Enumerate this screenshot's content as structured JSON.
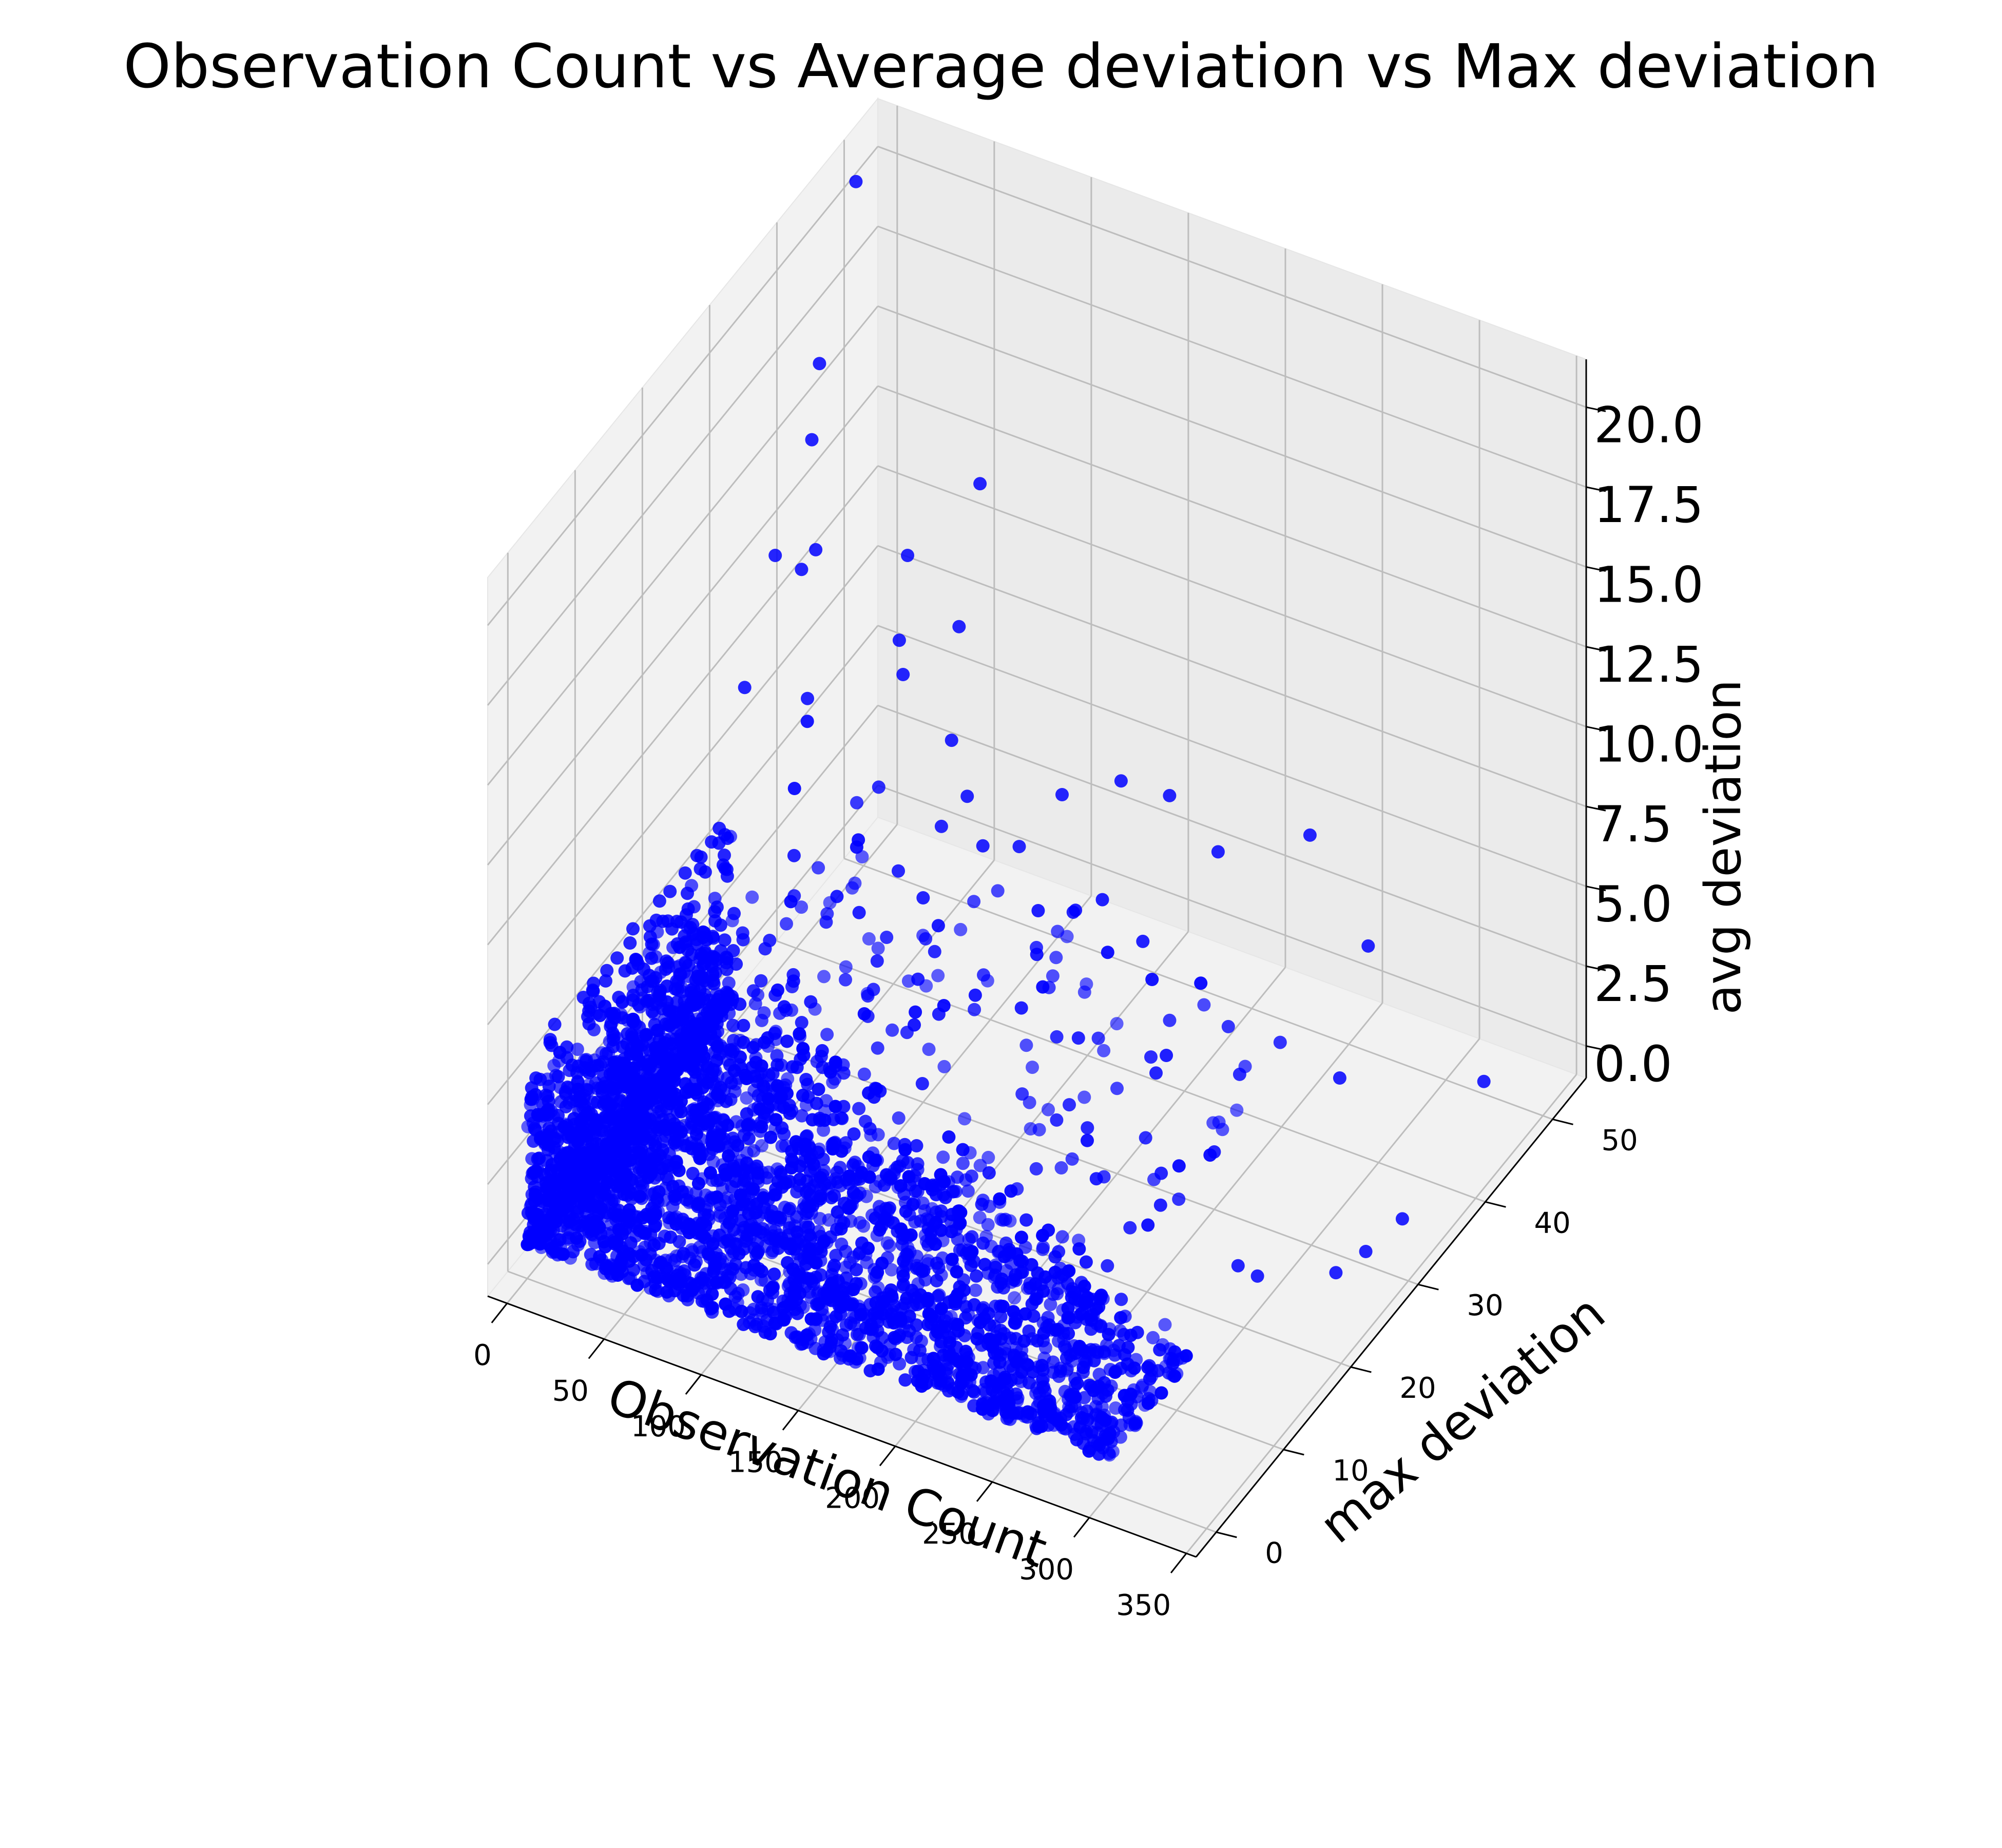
{
  "chart_data": {
    "type": "scatter",
    "projection": "3d",
    "title": "Observation Count vs Average deviation vs Max deviation",
    "xlabel": "Observation Count",
    "ylabel": "max deviation",
    "zlabel": "avg deviation",
    "x_ticks": [
      "0",
      "50",
      "100",
      "150",
      "200",
      "250",
      "300",
      "350"
    ],
    "y_ticks": [
      "0",
      "10",
      "20",
      "30",
      "40",
      "50"
    ],
    "z_ticks": [
      "0.0",
      "2.5",
      "5.0",
      "7.5",
      "10.0",
      "12.5",
      "15.0",
      "17.5",
      "20.0"
    ],
    "xlim": [
      -10,
      355
    ],
    "ylim": [
      -3,
      55
    ],
    "zlim": [
      -1,
      21.5
    ],
    "marker_color": "#0000ff",
    "grid": true,
    "outliers": [
      {
        "x": 3,
        "y": 48,
        "z": 21.0
      },
      {
        "x": 5,
        "y": 42,
        "z": 16.9
      },
      {
        "x": 8,
        "y": 40,
        "z": 15.1
      },
      {
        "x": 20,
        "y": 35,
        "z": 12.6
      },
      {
        "x": 60,
        "y": 50,
        "z": 12.3
      },
      {
        "x": 3,
        "y": 36,
        "z": 12.4
      },
      {
        "x": 40,
        "y": 45,
        "z": 10.9
      },
      {
        "x": 10,
        "y": 40,
        "z": 11.7
      },
      {
        "x": 15,
        "y": 28,
        "z": 10.6
      },
      {
        "x": 70,
        "y": 44,
        "z": 9.6
      },
      {
        "x": 30,
        "y": 33,
        "z": 9.3
      },
      {
        "x": 55,
        "y": 40,
        "z": 8.8
      },
      {
        "x": 80,
        "y": 40,
        "z": 7.3
      },
      {
        "x": 95,
        "y": 38,
        "z": 6.4
      },
      {
        "x": 110,
        "y": 36,
        "z": 5.7
      },
      {
        "x": 130,
        "y": 42,
        "z": 6.2
      },
      {
        "x": 150,
        "y": 45,
        "z": 6.3
      },
      {
        "x": 100,
        "y": 30,
        "z": 5.4
      },
      {
        "x": 160,
        "y": 35,
        "z": 5.0
      },
      {
        "x": 175,
        "y": 45,
        "z": 6.4
      },
      {
        "x": 200,
        "y": 45,
        "z": 5.2
      },
      {
        "x": 230,
        "y": 50,
        "z": 5.1
      },
      {
        "x": 260,
        "y": 50,
        "z": 2.3
      },
      {
        "x": 280,
        "y": 40,
        "z": 1.2
      },
      {
        "x": 330,
        "y": 47,
        "z": 0.4
      },
      {
        "x": 340,
        "y": 32,
        "z": 0.2
      },
      {
        "x": 335,
        "y": 28,
        "z": 0.1
      },
      {
        "x": 330,
        "y": 25,
        "z": 0.1
      },
      {
        "x": 300,
        "y": 22,
        "z": 0.1
      },
      {
        "x": 290,
        "y": 22,
        "z": 0.2
      },
      {
        "x": 250,
        "y": 30,
        "z": 0.8
      },
      {
        "x": 240,
        "y": 25,
        "z": 1.2
      },
      {
        "x": 220,
        "y": 30,
        "z": 2.6
      },
      {
        "x": 180,
        "y": 30,
        "z": 2.8
      },
      {
        "x": 60,
        "y": 38,
        "z": 10.5
      }
    ],
    "bulk_note": "several thousand points densely packed near low observation count, max deviation 0-25, avg deviation 0-5"
  }
}
